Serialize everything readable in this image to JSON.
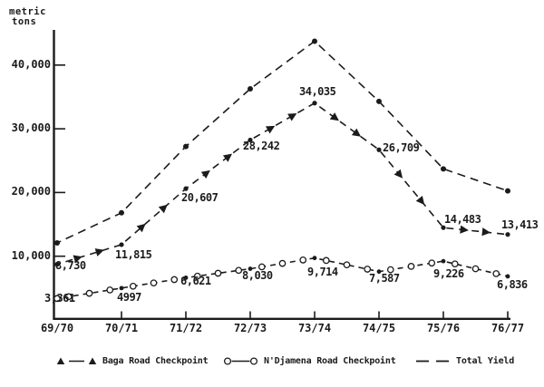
{
  "background": "#ffffff",
  "ink_color": "#1b1b1b",
  "unit_label": {
    "line1": "metric",
    "line2": "tons"
  },
  "chart_data": {
    "type": "line",
    "title": "",
    "ylabel": "metric tons",
    "xlabel": "",
    "ylim": [
      0,
      45000
    ],
    "grid": false,
    "legend_position": "bottom",
    "x_categories": [
      "69/70",
      "70/71",
      "71/72",
      "72/73",
      "73/74",
      "74/75",
      "75/76",
      "76/77"
    ],
    "yticks": [
      {
        "value": 10000,
        "label": "10,000"
      },
      {
        "value": 20000,
        "label": "20,000"
      },
      {
        "value": 30000,
        "label": "30,000"
      },
      {
        "value": 40000,
        "label": "40,000"
      }
    ],
    "series": [
      {
        "name": "Baga Road Checkpoint",
        "marker": "triangle",
        "line_style": "dashed",
        "values": [
          8730,
          11815,
          20607,
          28242,
          34035,
          26709,
          14483,
          13413
        ],
        "point_labels": [
          "8,730",
          "11,815",
          "20,607",
          "28,242",
          "34,035",
          "26,709",
          "14,483",
          "13,413"
        ]
      },
      {
        "name": "N'Djamena Road Checkpoint",
        "marker": "open-circle",
        "line_style": "dashed",
        "values": [
          3361,
          4997,
          6621,
          8030,
          9714,
          7587,
          9226,
          6836
        ],
        "point_labels": [
          "3,361",
          "4997",
          "6,621",
          "8,030",
          "9,714",
          "7,587",
          "9,226",
          "6,836"
        ]
      },
      {
        "name": "Total Yield",
        "marker": "filled-circle",
        "line_style": "dashed",
        "values": [
          12091,
          16812,
          27228,
          36272,
          43749,
          34296,
          23709,
          20249
        ],
        "point_labels": []
      }
    ]
  },
  "legend": {
    "items": [
      {
        "label": "Baga Road Checkpoint",
        "marker": "triangle"
      },
      {
        "label": "N'Djamena Road Checkpoint",
        "marker": "open-circle"
      },
      {
        "label": "Total Yield",
        "marker": "dash"
      }
    ]
  }
}
